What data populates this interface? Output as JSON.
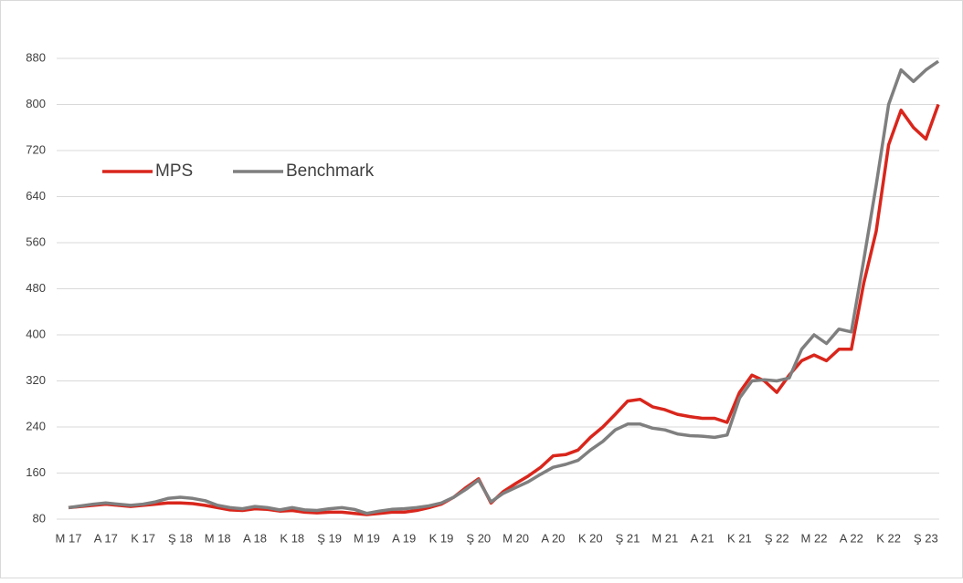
{
  "chart_data": {
    "type": "line",
    "categories": [
      "M 17",
      null,
      null,
      "A 17",
      null,
      null,
      "K 17",
      null,
      null,
      "Ş 18",
      null,
      null,
      "M 18",
      null,
      null,
      "A 18",
      null,
      null,
      "K 18",
      null,
      null,
      "Ş 19",
      null,
      null,
      "M 19",
      null,
      null,
      "A 19",
      null,
      null,
      "K 19",
      null,
      null,
      "Ş 20",
      null,
      null,
      "M 20",
      null,
      null,
      "A 20",
      null,
      null,
      "K 20",
      null,
      null,
      "Ş 21",
      null,
      null,
      "M 21",
      null,
      null,
      "A 21",
      null,
      null,
      "K 21",
      null,
      null,
      "Ş 22",
      null,
      null,
      "M 22",
      null,
      null,
      "A 22",
      null,
      null,
      "K 22",
      null,
      null,
      "Ş 23",
      null
    ],
    "series": [
      {
        "name": "MPS",
        "color": "#d9261c",
        "values": [
          100,
          102,
          104,
          106,
          104,
          102,
          104,
          106,
          108,
          108,
          107,
          104,
          100,
          96,
          95,
          98,
          97,
          94,
          95,
          92,
          91,
          92,
          92,
          90,
          88,
          90,
          92,
          92,
          95,
          100,
          106,
          118,
          135,
          150,
          108,
          128,
          142,
          155,
          170,
          190,
          192,
          200,
          222,
          240,
          262,
          285,
          288,
          275,
          270,
          262,
          258,
          255,
          255,
          248,
          300,
          330,
          320,
          300,
          330,
          355,
          365,
          355,
          375,
          375,
          490,
          580,
          730,
          790,
          760,
          740,
          800
        ]
      },
      {
        "name": "Benchmark",
        "color": "#7f7f7f",
        "values": [
          100,
          103,
          106,
          108,
          106,
          104,
          106,
          110,
          116,
          118,
          116,
          112,
          104,
          100,
          98,
          102,
          100,
          96,
          100,
          96,
          95,
          98,
          100,
          97,
          90,
          94,
          97,
          98,
          100,
          103,
          108,
          118,
          132,
          148,
          110,
          125,
          135,
          145,
          158,
          170,
          175,
          182,
          200,
          215,
          235,
          245,
          245,
          238,
          235,
          228,
          225,
          224,
          222,
          226,
          290,
          320,
          322,
          320,
          325,
          375,
          400,
          385,
          410,
          405,
          530,
          660,
          800,
          860,
          840,
          860,
          875
        ]
      }
    ],
    "ylim": [
      80,
      880
    ],
    "yticks": [
      80,
      160,
      240,
      320,
      400,
      480,
      560,
      640,
      720,
      800,
      880
    ],
    "grid": true,
    "legend": "left"
  }
}
